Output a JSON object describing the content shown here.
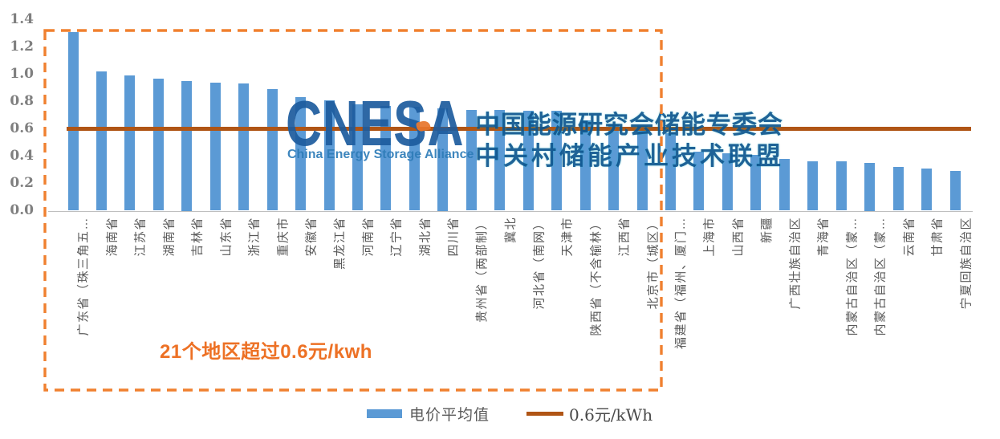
{
  "chart_data": {
    "type": "bar",
    "title": "",
    "categories": [
      "广东省（珠三角五…",
      "海南省",
      "江苏省",
      "湖南省",
      "吉林省",
      "山东省",
      "浙江省",
      "重庆市",
      "安徽省",
      "黑龙江省",
      "河南省",
      "辽宁省",
      "湖北省",
      "四川省",
      "贵州省（两部制）",
      "冀北",
      "河北省（南网）",
      "天津市",
      "陕西省（不含榆林）",
      "江西省",
      "北京市（城区）",
      "福建省（福州、厦门…",
      "上海市",
      "山西省",
      "新疆",
      "广西壮族自治区",
      "青海省",
      "内蒙古自治区（蒙…",
      "内蒙古自治区（蒙…",
      "云南省",
      "甘肃省",
      "宁夏回族自治区"
    ],
    "values": [
      1.31,
      1.02,
      0.99,
      0.97,
      0.95,
      0.94,
      0.93,
      0.89,
      0.83,
      0.81,
      0.78,
      0.77,
      0.76,
      0.75,
      0.74,
      0.74,
      0.73,
      0.73,
      0.66,
      0.63,
      0.62,
      0.57,
      0.43,
      0.42,
      0.41,
      0.38,
      0.36,
      0.36,
      0.35,
      0.32,
      0.31,
      0.29
    ],
    "xlabel": "",
    "ylabel": "",
    "ylim": [
      0,
      1.4
    ],
    "yticks": [
      "0.0",
      "0.2",
      "0.4",
      "0.6",
      "0.8",
      "1.0",
      "1.2",
      "1.4"
    ],
    "grid": false,
    "legend_position": "bottom",
    "reference_line": {
      "value": 0.6,
      "label": "0.6元/kWh"
    },
    "legend": [
      {
        "label": "电价平均值",
        "type": "bar"
      },
      {
        "label": "0.6元/kWh",
        "type": "line"
      }
    ],
    "annotation": "21个地区超过0.6元/kwh",
    "highlighted_region_count": 21,
    "colors": {
      "bar": "#5B9AD5",
      "line": "#B05515",
      "box": "#F0802F",
      "annotation": "#ED7125",
      "axis_text": "#7F7F7F",
      "label_text": "#595959"
    }
  },
  "watermark": {
    "logo": "CNESA",
    "logo_sub": "China Energy Storage Alliance",
    "line1": "中国能源研究会储能专委会",
    "line2": "中关村储能产业技术联盟"
  }
}
